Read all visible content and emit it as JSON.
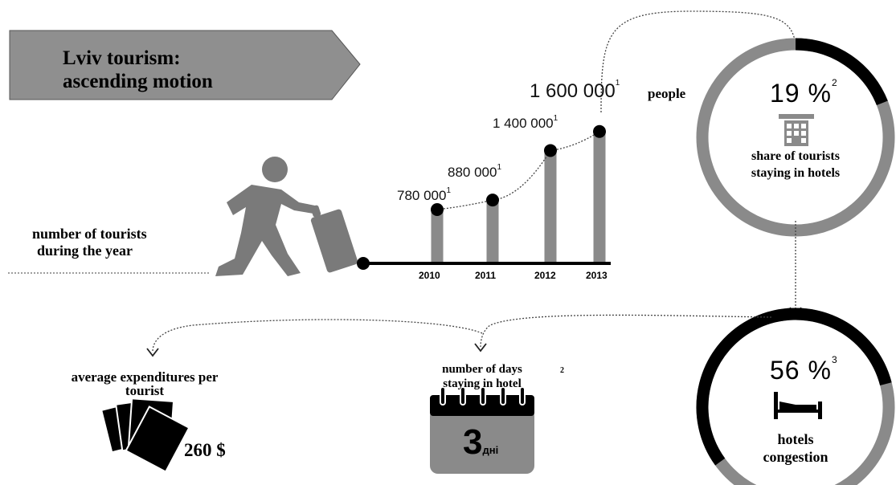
{
  "banner": {
    "line1": "Lviv tourism:",
    "line2": "ascending motion"
  },
  "tourists_label": {
    "line1": "number of tourists",
    "line2": "during the year"
  },
  "chart_data": {
    "type": "bar",
    "categories": [
      "2010",
      "2011",
      "2012",
      "2013"
    ],
    "values": [
      780000,
      880000,
      1400000,
      1600000
    ],
    "value_labels": [
      "780 000",
      "880 000",
      "1 400 000",
      "1 600 000"
    ],
    "footnote_marks": [
      "1",
      "1",
      "1",
      "1"
    ],
    "unit": "people"
  },
  "hotel_share": {
    "value": "19 %",
    "footnote": "2",
    "line1": "share of tourists",
    "line2": "staying in hotels",
    "fraction": 0.19
  },
  "congestion": {
    "value": "56 %",
    "footnote": "3",
    "line1": "hotels",
    "line2": "congestion",
    "fraction": 0.56
  },
  "days": {
    "line1": "number of days",
    "line2": "staying in hotel",
    "footnote": "2",
    "number": "3",
    "unit": "дні"
  },
  "expenditure": {
    "line1": "average expenditures per",
    "line2": "tourist",
    "amount": "260 $"
  }
}
